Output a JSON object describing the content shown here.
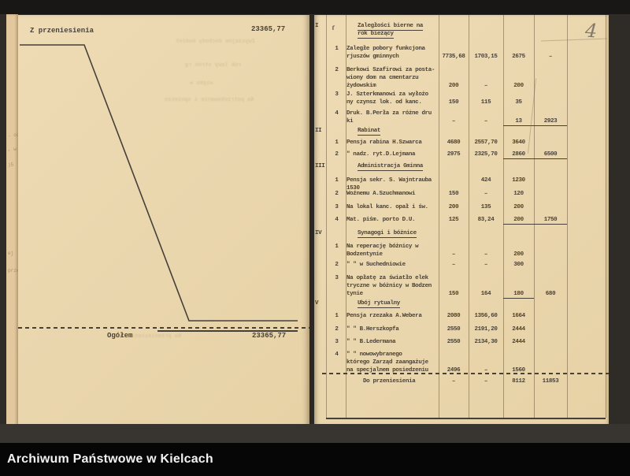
{
  "viewer": {
    "archive_label": "Archiwum Państwowe w Kielcach"
  },
  "annotations": {
    "handwritten_page_number": "4"
  },
  "colors": {
    "paper": "#ead6ad",
    "ink": "#4a4136",
    "backdrop": "#2f2b27",
    "bar": "#070606",
    "bar_text": "#f2f2f2"
  },
  "left_page": {
    "carry_over_label": "Z przeniesienia",
    "carry_over_value": "23365,77",
    "total_label": "Ogółem",
    "total_value": "23365,77",
    "ghost_fragments": [
      "Zwyczajne dochody budżet",
      "rok lewy stron rg",
      "więku w",
      "Na potrzebowanie i społeczn",
      "Na przeniesienie"
    ],
    "margin_fragments": [
      ". od",
      ", w",
      ")5",
      "ej",
      "prze"
    ]
  },
  "right_page": {
    "sections": [
      {
        "roman": "I",
        "mark": "ſ",
        "title": "Zaległości bierne na\nrok bieżący",
        "rows": [
          {
            "no": "1",
            "desc": "Zaległe pobory funkcjona\nrjuszów gminnych",
            "cells": [
              "7735,68",
              "1703,15",
              "2675",
              "–"
            ],
            "underline": []
          },
          {
            "no": "2",
            "desc": "Berkowi Szafirowi za posta-\nwiony dom na cmentarzu\nżydowskim",
            "cells": [
              "200",
              "–",
              "200",
              ""
            ],
            "underline": []
          },
          {
            "no": "3",
            "desc": "J. Szterkmanowi za wyłożo\nny czynsz lok. od kanc.",
            "cells": [
              "150",
              "115",
              "35",
              ""
            ],
            "underline": []
          },
          {
            "no": "4",
            "desc": "Druk. B.Perła za różne dru\nki",
            "cells": [
              "–",
              "–",
              "13",
              "2923"
            ],
            "underline": [
              2,
              3
            ]
          }
        ]
      },
      {
        "roman": "II",
        "mark": "",
        "title": "Rabinat",
        "rows": [
          {
            "no": "1",
            "desc": "Pensja rabina H.Szwarca",
            "cells": [
              "4680",
              "2557,70",
              "3640",
              ""
            ],
            "underline": []
          },
          {
            "no": "2",
            "desc": "  \"   nadz. ryt.D.Lejmana",
            "cells": [
              "2975",
              "2325,70",
              "2860",
              "6500"
            ],
            "underline": [
              2,
              3
            ]
          }
        ]
      },
      {
        "roman": "III",
        "mark": "",
        "title": "Administracja Gminna",
        "rows": [
          {
            "no": "1",
            "desc": "Pensja sekr. S. Wajntrauba 1530",
            "cells": [
              "",
              "424",
              "1230",
              ""
            ],
            "underline": []
          },
          {
            "no": "2",
            "desc": "Woźnemu A.Szuchmanowi",
            "cells": [
              "150",
              "–",
              "120",
              ""
            ],
            "underline": []
          },
          {
            "no": "3",
            "desc": "Na lokal kanc. opał i św.",
            "cells": [
              "200",
              "135",
              "200",
              ""
            ],
            "underline": []
          },
          {
            "no": "4",
            "desc": "Mat. piśm. porto D.U.",
            "cells": [
              "125",
              "83,24",
              "200",
              "1750"
            ],
            "underline": [
              2,
              3
            ]
          }
        ]
      },
      {
        "roman": "IV",
        "mark": "",
        "title": "Synagogi i bóżnice",
        "rows": [
          {
            "no": "1",
            "desc": "Na reperację bóżnicy w\nBodzentynie",
            "cells": [
              "–",
              "–",
              "200",
              ""
            ],
            "underline": []
          },
          {
            "no": "2",
            "desc": "\"     \"  w Suchedniowie",
            "cells": [
              "–",
              "–",
              "300",
              ""
            ],
            "underline": []
          },
          {
            "no": "3",
            "desc": "Na opłatę za światło elek\ntryczne w bóżnicy w Bodzen\ntynie",
            "cells": [
              "150",
              "164",
              "180",
              "680"
            ],
            "underline": [
              2
            ]
          }
        ]
      },
      {
        "roman": "V",
        "mark": "",
        "title": "Ubój rytualny",
        "rows": [
          {
            "no": "1",
            "desc": "Pensja rzezaka A.Webera",
            "cells": [
              "2080",
              "1356,60",
              "1664",
              ""
            ],
            "underline": []
          },
          {
            "no": "2",
            "desc": "\"    \"    B.Herszkopfa",
            "cells": [
              "2550",
              "2191,20",
              "2444",
              ""
            ],
            "underline": []
          },
          {
            "no": "3",
            "desc": "\"    \"    B.Ledermana",
            "cells": [
              "2550",
              "2134,30",
              "2444",
              ""
            ],
            "underline": []
          },
          {
            "no": "4",
            "desc": "\"    \"   nowowybranego\nktórego Zarząd zaangażuje\nna specjalnem posiedzeniu",
            "cells": [
              "2496",
              "–",
              "1560",
              ""
            ],
            "underline": []
          }
        ]
      }
    ],
    "footer_row": {
      "label": "Do przeniesienia",
      "cells": [
        "–",
        "–",
        "8112",
        "11853"
      ]
    }
  }
}
